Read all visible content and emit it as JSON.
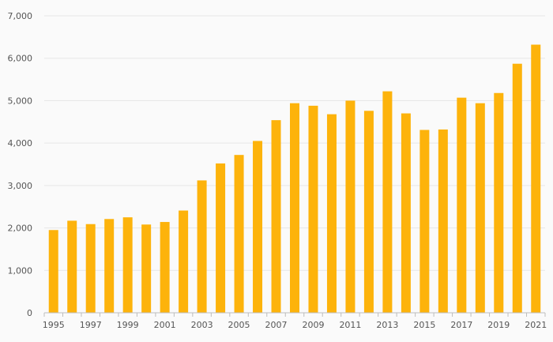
{
  "chart_data": {
    "type": "bar",
    "categories": [
      "1995",
      "1996",
      "1997",
      "1998",
      "1999",
      "2000",
      "2001",
      "2002",
      "2003",
      "2004",
      "2005",
      "2006",
      "2007",
      "2008",
      "2009",
      "2010",
      "2011",
      "2012",
      "2013",
      "2014",
      "2015",
      "2016",
      "2017",
      "2018",
      "2019",
      "2020",
      "2021"
    ],
    "x_tick_labels": [
      "1995",
      "1997",
      "1999",
      "2001",
      "2003",
      "2005",
      "2007",
      "2009",
      "2011",
      "2013",
      "2015",
      "2017",
      "2019",
      "2021"
    ],
    "values": [
      1950,
      2170,
      2090,
      2210,
      2250,
      2080,
      2140,
      2410,
      3120,
      3520,
      3720,
      4050,
      4540,
      4940,
      4880,
      4680,
      5000,
      4760,
      5220,
      4700,
      4310,
      4320,
      5070,
      4940,
      5180,
      5870,
      6320
    ],
    "y_tick_labels": [
      "0",
      "1,000",
      "2,000",
      "3,000",
      "4,000",
      "5,000",
      "6,000",
      "7,000"
    ],
    "ylim": [
      0,
      7000
    ],
    "y_ticks": [
      0,
      1000,
      2000,
      3000,
      4000,
      5000,
      6000,
      7000
    ],
    "title": "",
    "xlabel": "",
    "ylabel": "",
    "grid": true,
    "bar_color": "#FDB30B"
  }
}
